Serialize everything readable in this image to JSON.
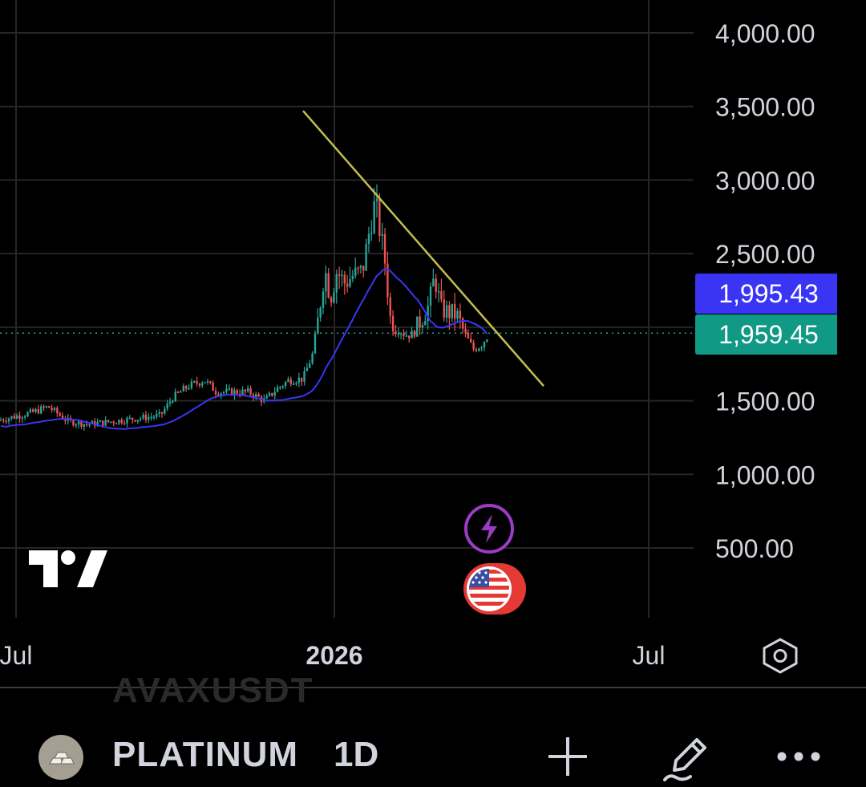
{
  "chart_data": {
    "type": "candlestick",
    "y_ticks": [
      "4,000.00",
      "3,500.00",
      "3,000.00",
      "2,500.00",
      "1,500.00",
      "1,000.00",
      "500.00"
    ],
    "x_ticks": [
      {
        "label": "Jul",
        "bold": false
      },
      {
        "label": "2026",
        "bold": true
      },
      {
        "label": "Jul",
        "bold": false
      }
    ],
    "ma_value": "1,995.43",
    "last_price": "1,959.45",
    "ma_color": "#3a35f5",
    "last_price_color": "#109a86",
    "up_color": "#26a69a",
    "down_color": "#ef5350",
    "trendline_color": "#c5c04a",
    "grid": true,
    "price_approx": [
      {
        "period": "mid 2025",
        "price": 1400
      },
      {
        "period": "late 2025",
        "price": 1600
      },
      {
        "period": "Dec 2025",
        "price": 2300
      },
      {
        "period": "Jan 2026 peak",
        "price": 2850
      },
      {
        "period": "Feb 2026",
        "price": 2100
      },
      {
        "period": "Mar 2026",
        "price": 2300
      },
      {
        "period": "Apr 2026",
        "price": 1959.45
      }
    ]
  },
  "bottom_bar": {
    "ghost_symbol": "AVAXUSDT",
    "symbol": "PLATINUM",
    "interval": "1D"
  },
  "icons": {
    "symbol_logo": "platinum-bars-icon",
    "add": "plus-icon",
    "draw": "pencil-icon",
    "more": "more-dots-icon",
    "settings": "settings-hexagon-icon",
    "event_flash": "lightning-icon",
    "event_flag": "us-flag-icon"
  }
}
